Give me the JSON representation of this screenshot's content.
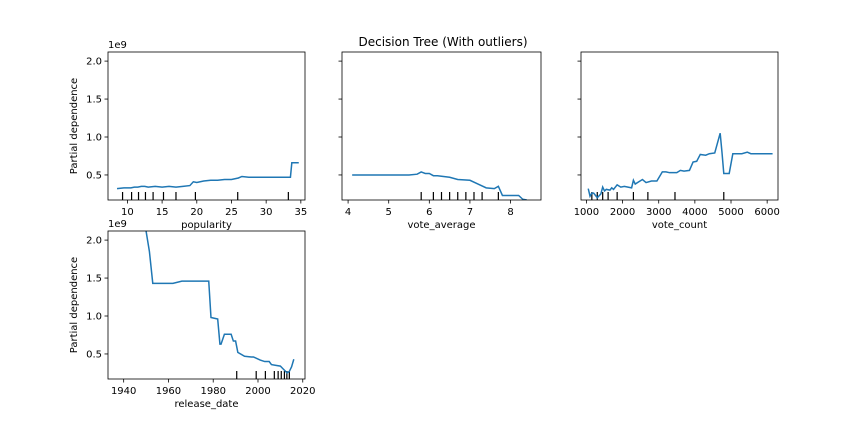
{
  "title": "Decision Tree (With outliers)",
  "colors": {
    "line": "#1f77b4",
    "axis": "#000000",
    "background": "#ffffff"
  },
  "chart_data": [
    {
      "type": "line",
      "xlabel": "popularity",
      "ylabel": "Partial dependence",
      "y_offset_label": "1e9",
      "xlim": [
        7.2,
        35.6
      ],
      "ylim": [
        0.17,
        2.12
      ],
      "xticks": [
        10,
        15,
        20,
        25,
        30,
        35
      ],
      "xtick_labels": [
        "10",
        "15",
        "20",
        "25",
        "30",
        "35"
      ],
      "yticks": [
        0.5,
        1.0,
        1.5,
        2.0
      ],
      "ytick_labels": [
        "0.5",
        "1.0",
        "1.5",
        "2.0"
      ],
      "show_yticklabels": true,
      "x": [
        8.5,
        9.5,
        10.5,
        11.0,
        11.5,
        12.0,
        12.5,
        13.0,
        14.0,
        15.0,
        16.0,
        17.0,
        18.0,
        19.0,
        19.5,
        20.0,
        21.0,
        22.0,
        23.0,
        24.0,
        25.0,
        26.0,
        26.5,
        27.5,
        28.0,
        30.0,
        32.0,
        33.5,
        33.7,
        34.0,
        34.7
      ],
      "y": [
        0.32,
        0.33,
        0.33,
        0.34,
        0.34,
        0.35,
        0.35,
        0.34,
        0.35,
        0.34,
        0.35,
        0.34,
        0.35,
        0.36,
        0.41,
        0.4,
        0.42,
        0.43,
        0.43,
        0.44,
        0.44,
        0.46,
        0.48,
        0.47,
        0.47,
        0.47,
        0.47,
        0.47,
        0.66,
        0.66,
        0.66
      ],
      "deciles": [
        9.3,
        10.6,
        11.6,
        12.6,
        13.7,
        15.2,
        17.0,
        19.8,
        25.9,
        33.2
      ]
    },
    {
      "type": "line",
      "xlabel": "vote_average",
      "ylabel": "",
      "y_offset_label": "",
      "xlim": [
        3.85,
        8.75
      ],
      "ylim": [
        0.17,
        2.12
      ],
      "xticks": [
        4,
        5,
        6,
        7,
        8
      ],
      "xtick_labels": [
        "4",
        "5",
        "6",
        "7",
        "8"
      ],
      "yticks": [
        0.5,
        1.0,
        1.5,
        2.0
      ],
      "ytick_labels": [
        "",
        "",
        "",
        ""
      ],
      "show_yticklabels": false,
      "x": [
        4.1,
        5.0,
        5.5,
        5.7,
        5.8,
        5.9,
        6.0,
        6.1,
        6.2,
        6.5,
        6.7,
        7.0,
        7.2,
        7.4,
        7.6,
        7.7,
        7.8,
        8.2,
        8.3,
        8.4
      ],
      "y": [
        0.5,
        0.5,
        0.5,
        0.51,
        0.54,
        0.52,
        0.52,
        0.49,
        0.49,
        0.47,
        0.44,
        0.43,
        0.38,
        0.33,
        0.32,
        0.35,
        0.23,
        0.23,
        0.18,
        0.17
      ],
      "deciles": [
        5.8,
        6.1,
        6.3,
        6.5,
        6.7,
        6.9,
        7.1,
        7.3,
        7.7
      ]
    },
    {
      "type": "line",
      "xlabel": "vote_count",
      "ylabel": "",
      "y_offset_label": "",
      "xlim": [
        850,
        6300
      ],
      "ylim": [
        0.17,
        2.12
      ],
      "xticks": [
        1000,
        2000,
        3000,
        4000,
        5000,
        6000
      ],
      "xtick_labels": [
        "1000",
        "2000",
        "3000",
        "4000",
        "5000",
        "6000"
      ],
      "yticks": [
        0.5,
        1.0,
        1.5,
        2.0
      ],
      "ytick_labels": [
        "",
        "",
        "",
        ""
      ],
      "show_yticklabels": false,
      "x": [
        1050,
        1100,
        1150,
        1200,
        1300,
        1400,
        1450,
        1500,
        1550,
        1650,
        1700,
        1750,
        1850,
        1950,
        2050,
        2150,
        2250,
        2300,
        2350,
        2450,
        2550,
        2650,
        2800,
        2950,
        3100,
        3200,
        3300,
        3500,
        3600,
        3700,
        3850,
        3950,
        4050,
        4150,
        4300,
        4400,
        4550,
        4700,
        4750,
        4800,
        4850,
        4950,
        5050,
        5300,
        5450,
        5550,
        5750,
        6150
      ],
      "y": [
        0.32,
        0.22,
        0.26,
        0.26,
        0.2,
        0.25,
        0.34,
        0.29,
        0.31,
        0.3,
        0.33,
        0.31,
        0.37,
        0.34,
        0.35,
        0.34,
        0.33,
        0.43,
        0.38,
        0.41,
        0.44,
        0.4,
        0.42,
        0.42,
        0.54,
        0.54,
        0.53,
        0.53,
        0.56,
        0.55,
        0.56,
        0.67,
        0.68,
        0.77,
        0.76,
        0.78,
        0.79,
        1.05,
        0.8,
        0.52,
        0.52,
        0.52,
        0.78,
        0.78,
        0.8,
        0.78,
        0.78,
        0.78
      ],
      "deciles": [
        1150,
        1300,
        1450,
        1600,
        1850,
        2300,
        2700,
        3450,
        4800
      ]
    },
    {
      "type": "line",
      "xlabel": "release_date",
      "ylabel": "Partial dependence",
      "y_offset_label": "1e9",
      "xlim": [
        1933,
        2021
      ],
      "ylim": [
        0.17,
        2.12
      ],
      "xticks": [
        1940,
        1960,
        1980,
        2000,
        2020
      ],
      "xtick_labels": [
        "1940",
        "1960",
        "1980",
        "2000",
        "2020"
      ],
      "yticks": [
        0.5,
        1.0,
        1.5,
        2.0
      ],
      "ytick_labels": [
        "0.5",
        "1.0",
        "1.5",
        "2.0"
      ],
      "show_yticklabels": true,
      "x": [
        1950.0,
        1951.5,
        1953.0,
        1962.0,
        1966.0,
        1978.0,
        1979.0,
        1982.0,
        1983.0,
        1983.5,
        1985.0,
        1988.0,
        1989.0,
        1990.0,
        1991.0,
        1994.0,
        1997.0,
        1998.0,
        2001.0,
        2003.0,
        2005.0,
        2006.0,
        2008.0,
        2010.0,
        2011.0,
        2012.0,
        2013.0,
        2014.0,
        2015.0,
        2016.0
      ],
      "y": [
        2.12,
        1.85,
        1.43,
        1.43,
        1.46,
        1.46,
        0.98,
        0.96,
        0.63,
        0.63,
        0.76,
        0.76,
        0.67,
        0.67,
        0.52,
        0.47,
        0.46,
        0.46,
        0.42,
        0.4,
        0.4,
        0.36,
        0.35,
        0.34,
        0.31,
        0.28,
        0.25,
        0.27,
        0.33,
        0.43
      ],
      "deciles": [
        1990.5,
        1999.2,
        2003.3,
        2007.3,
        2009.0,
        2010.4,
        2011.8,
        2012.9,
        2014.0
      ]
    }
  ]
}
